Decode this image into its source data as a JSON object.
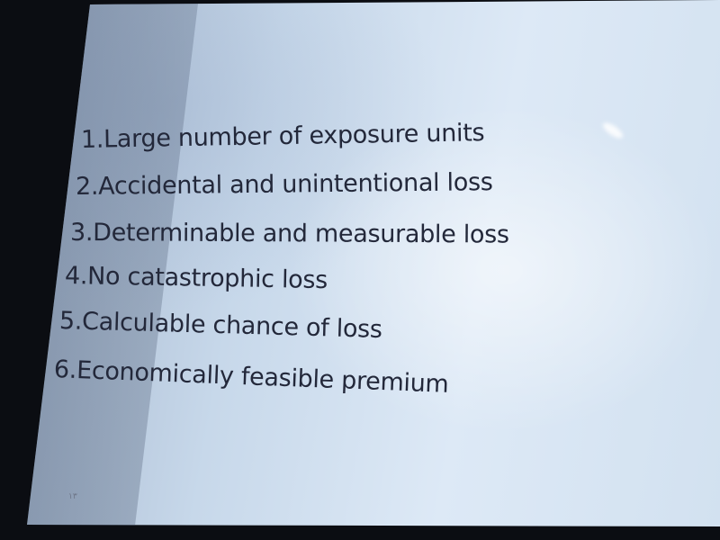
{
  "slide": {
    "items": [
      "1.Large number of exposure units",
      "2.Accidental and unintentional loss",
      "3.Determinable and measurable loss",
      "4.No catastrophic loss",
      "5.Calculable chance of loss",
      "6.Economically feasible premium"
    ],
    "page_number": "١٣"
  },
  "colors": {
    "background": "#0b0d12",
    "screen": "#d2e1f0",
    "text": "#23283a"
  }
}
